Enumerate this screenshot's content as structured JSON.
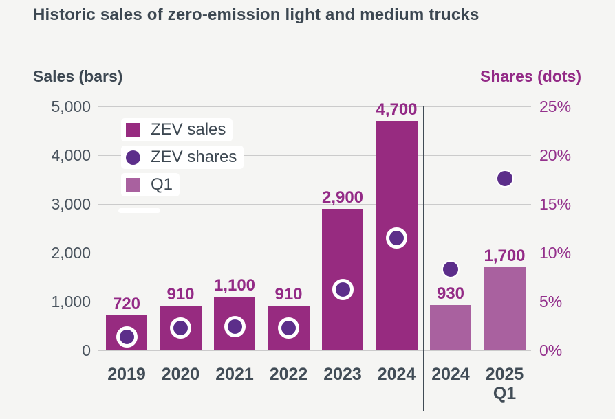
{
  "title": "Historic sales of zero-emission light and medium trucks",
  "axes": {
    "left_header": "Sales (bars)",
    "right_header": "Shares (dots)",
    "left_ticks": [
      "5,000",
      "4,000",
      "3,000",
      "2,000",
      "1,000",
      "0"
    ],
    "right_ticks": [
      "25%",
      "20%",
      "15%",
      "10%",
      "5%",
      "0%"
    ]
  },
  "legend": [
    {
      "label": "ZEV sales",
      "swatch": "square",
      "color_key": "bar_magenta"
    },
    {
      "label": "ZEV shares",
      "swatch": "circle",
      "color_key": "dot_purple"
    },
    {
      "label": "Q1",
      "swatch": "square",
      "color_key": "bar_q1"
    }
  ],
  "colors": {
    "background": "#f5f5f3",
    "bar_magenta": "#972b80",
    "bar_q1": "#a9619f",
    "dot_purple": "#5c2e8a",
    "accent_text": "#932a86",
    "dark_text": "#3c4751",
    "gridline": "#cbcbcb",
    "divider": "#414b55"
  },
  "chart_data": {
    "type": "bar",
    "subtype": "dual-axis bar + scatter",
    "title": "Historic sales of zero-emission light and medium trucks",
    "categories": [
      "2019",
      "2020",
      "2021",
      "2022",
      "2023",
      "2024",
      "2024",
      "2025"
    ],
    "category_sublabels": [
      "",
      "",
      "",
      "",
      "",
      "",
      "",
      "Q1"
    ],
    "series": [
      {
        "name": "ZEV sales",
        "type": "bar",
        "axis": "left",
        "values": [
          720,
          910,
          1100,
          910,
          2900,
          4700,
          null,
          null
        ]
      },
      {
        "name": "Q1",
        "type": "bar",
        "axis": "left",
        "values": [
          null,
          null,
          null,
          null,
          null,
          null,
          930,
          1700
        ]
      },
      {
        "name": "ZEV shares",
        "type": "scatter",
        "axis": "right",
        "unit": "%",
        "values": [
          1.4,
          2.3,
          2.4,
          2.3,
          6.2,
          11.5,
          8.3,
          17.6
        ],
        "note": "percent, estimated from dot positions"
      }
    ],
    "bar_value_labels": [
      "720",
      "910",
      "1,100",
      "910",
      "2,900",
      "4,700",
      "930",
      "1,700"
    ],
    "left_axis": {
      "title": "Sales (bars)",
      "min": 0,
      "max": 5000,
      "tick_step": 1000
    },
    "right_axis": {
      "title": "Shares (dots)",
      "min": 0,
      "max": 25,
      "tick_step": 5,
      "unit": "%"
    },
    "divider_after_category_index": 5,
    "grid": true,
    "legend_position": "top-left",
    "legend_entries": [
      "ZEV sales",
      "ZEV shares",
      "Q1"
    ]
  }
}
